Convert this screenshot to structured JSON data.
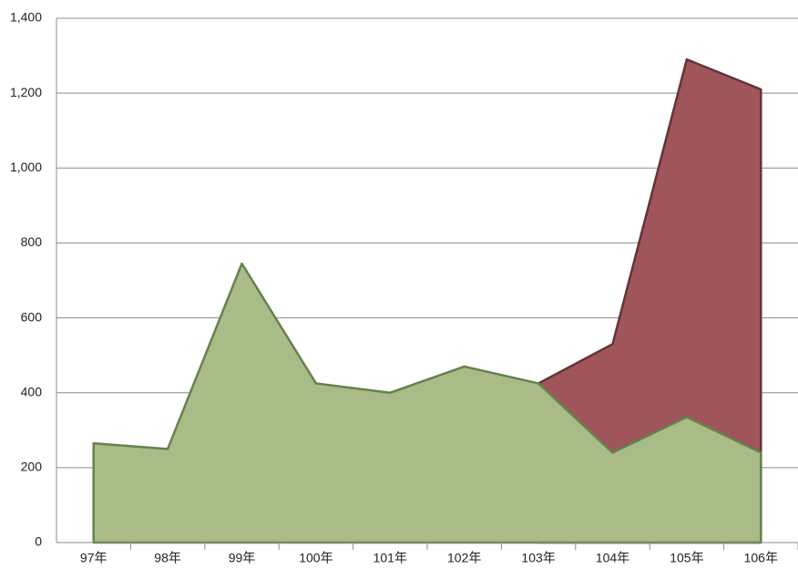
{
  "chart_data": {
    "type": "area",
    "categories": [
      "97年",
      "98年",
      "99年",
      "100年",
      "101年",
      "102年",
      "103年",
      "104年",
      "105年",
      "106年"
    ],
    "series": [
      {
        "color": "#a3d17c",
        "values": [
          265,
          250,
          745,
          425,
          400,
          470,
          425,
          240,
          335,
          240
        ]
      },
      {
        "color": "#a0555a",
        "values": [
          null,
          null,
          null,
          null,
          null,
          null,
          425,
          530,
          1290,
          1210
        ]
      }
    ],
    "ylim": [
      0,
      1400
    ],
    "yticks": [
      0,
      {
        "value": 200,
        "label": "200"
      },
      400,
      600,
      800,
      {
        "value": 1000,
        "label": "1,000"
      },
      {
        "value": 1200,
        "label": "1,200"
      },
      {
        "value": 1400,
        "label": "1,400"
      }
    ],
    "grid": true
  }
}
